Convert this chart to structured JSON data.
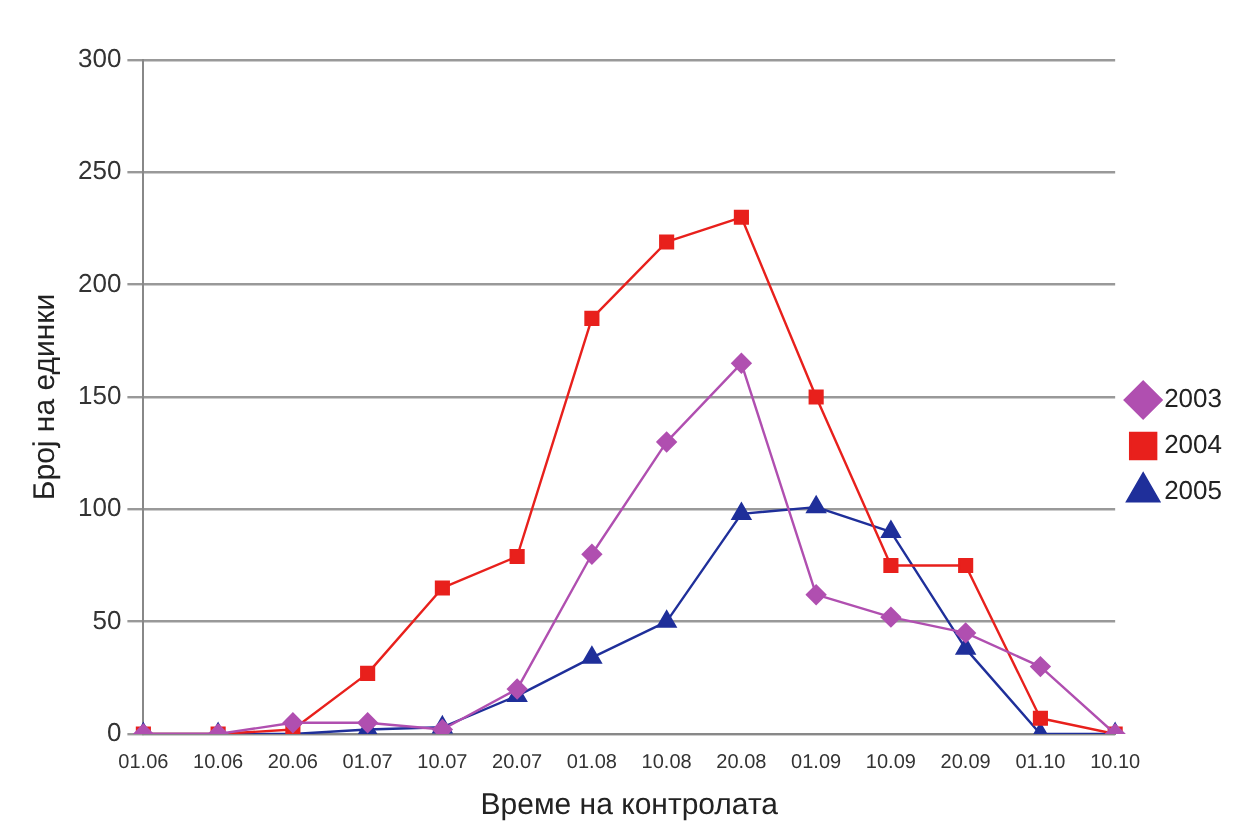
{
  "chart_data": {
    "type": "line",
    "xlabel": "Време на контролата",
    "ylabel": "Број на единки",
    "categories": [
      "01.06",
      "10.06",
      "20.06",
      "01.07",
      "10.07",
      "20.07",
      "01.08",
      "10.08",
      "20.08",
      "01.09",
      "10.09",
      "20.09",
      "01.10",
      "10.10"
    ],
    "series": [
      {
        "name": "2003",
        "color": "#b04fb0",
        "marker": "diamond",
        "values": [
          0,
          0,
          5,
          5,
          2,
          20,
          80,
          130,
          165,
          62,
          52,
          45,
          30,
          0
        ]
      },
      {
        "name": "2004",
        "color": "#e8201c",
        "marker": "square",
        "values": [
          0,
          0,
          2,
          27,
          65,
          79,
          185,
          219,
          230,
          150,
          75,
          75,
          7,
          0
        ]
      },
      {
        "name": "2005",
        "color": "#1f2f9a",
        "marker": "triangle",
        "values": [
          0,
          0,
          0,
          2,
          3,
          17,
          34,
          50,
          98,
          101,
          90,
          38,
          0,
          0
        ]
      }
    ],
    "ylim": [
      0,
      300
    ],
    "yticks": [
      0,
      50,
      100,
      150,
      200,
      250,
      300
    ],
    "grid": "y",
    "legend": "right"
  }
}
